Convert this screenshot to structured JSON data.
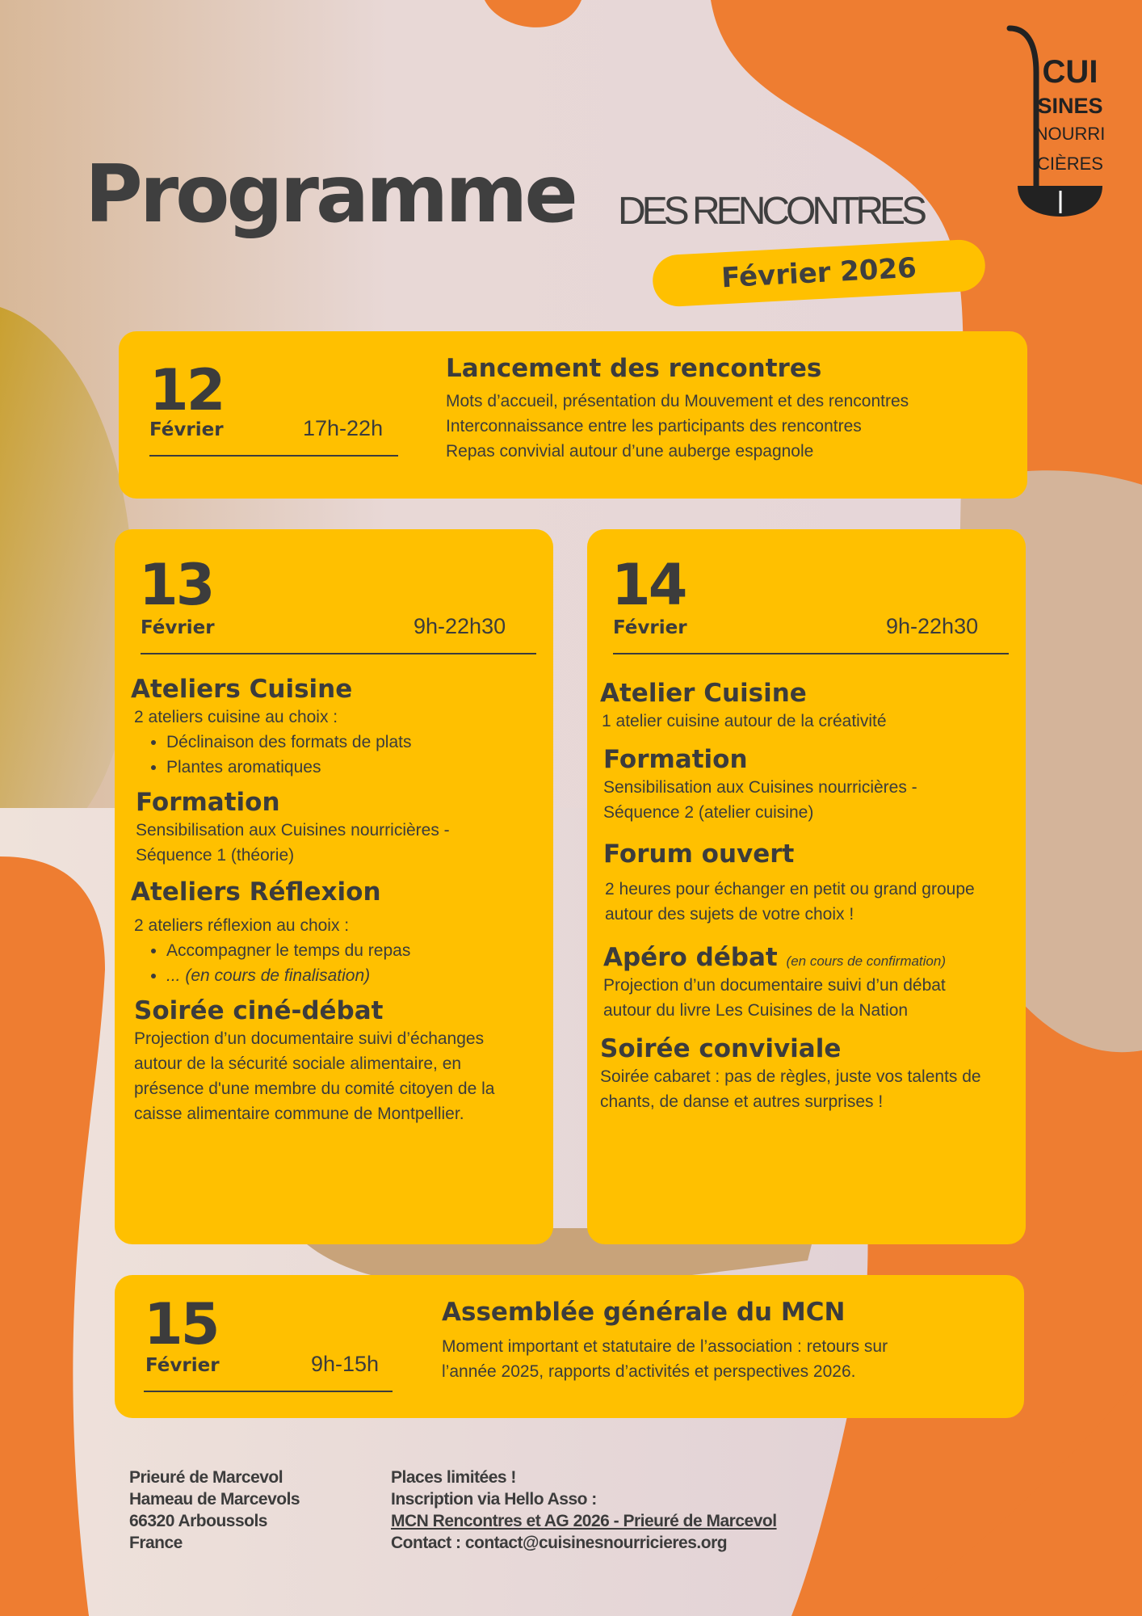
{
  "colors": {
    "background": "#ee7d31",
    "card": "#ffc000",
    "text": "#3c3c3c",
    "blob": "#ecdcdc"
  },
  "header": {
    "title": "Programme",
    "subtitle": "DES RENCONTRES",
    "date_pill": "Février 2026",
    "logo": {
      "lines": [
        "CUI",
        "SINES",
        "NOURRI",
        "CIÈRES"
      ],
      "icon": "ladle-logo"
    }
  },
  "days": [
    {
      "day": "12",
      "month": "Février",
      "time": "17h-22h",
      "title": "Lancement des rencontres",
      "lines": [
        "Mots d’accueil, présentation du Mouvement et des rencontres",
        "Interconnaissance entre les participants des rencontres",
        "Repas convivial autour d’une auberge espagnole"
      ]
    },
    {
      "day": "13",
      "month": "Février",
      "time": "9h-22h30",
      "sections": [
        {
          "title": "Ateliers Cuisine",
          "text": "2 ateliers cuisine au choix :",
          "bullets": [
            "Déclinaison des formats de plats",
            "Plantes aromatiques"
          ]
        },
        {
          "title": "Formation",
          "text": "Sensibilisation aux Cuisines nourricières - Séquence 1 (théorie)"
        },
        {
          "title": "Ateliers Réflexion",
          "text": "2 ateliers réflexion au choix :",
          "bullets": [
            "Accompagner le temps du repas",
            "... (en cours de finalisation)"
          ]
        },
        {
          "title": "Soirée ciné-débat",
          "text": "Projection d’un documentaire suivi d’échanges autour de la sécurité sociale alimentaire, en présence d'une membre du comité citoyen de la caisse alimentaire commune de Montpellier."
        }
      ]
    },
    {
      "day": "14",
      "month": "Février",
      "time": "9h-22h30",
      "sections": [
        {
          "title": "Atelier Cuisine",
          "text": "1 atelier cuisine autour de la créativité"
        },
        {
          "title": "Formation",
          "text": "Sensibilisation aux Cuisines nourricières - Séquence 2 (atelier cuisine)"
        },
        {
          "title": "Forum ouvert",
          "text": "2 heures pour échanger en petit ou grand groupe autour des sujets de votre choix !"
        },
        {
          "title": "Apéro débat",
          "note": "(en cours de confirmation)",
          "text": "Projection d’un documentaire suivi d’un débat autour du livre Les Cuisines de la Nation"
        },
        {
          "title": "Soirée conviviale",
          "text": "Soirée cabaret : pas de règles, juste vos talents de chants, de danse et autres surprises  !"
        }
      ]
    },
    {
      "day": "15",
      "month": "Février",
      "time": "9h-15h",
      "title": "Assemblée générale du MCN",
      "lines": [
        "Moment important et statutaire de l’association : retours sur",
        "l’année 2025, rapports d’activités et perspectives 2026."
      ]
    }
  ],
  "footer": {
    "address": [
      "Prieuré de Marcevol",
      "Hameau de Marcevols",
      "66320 Arboussols",
      "France"
    ],
    "places": "Places limitées !",
    "inscription": "Inscription via Hello Asso :",
    "link": "MCN Rencontres et AG 2026 - Prieuré de Marcevol",
    "contact": "Contact : contact@cuisinesnourricieres.org"
  }
}
